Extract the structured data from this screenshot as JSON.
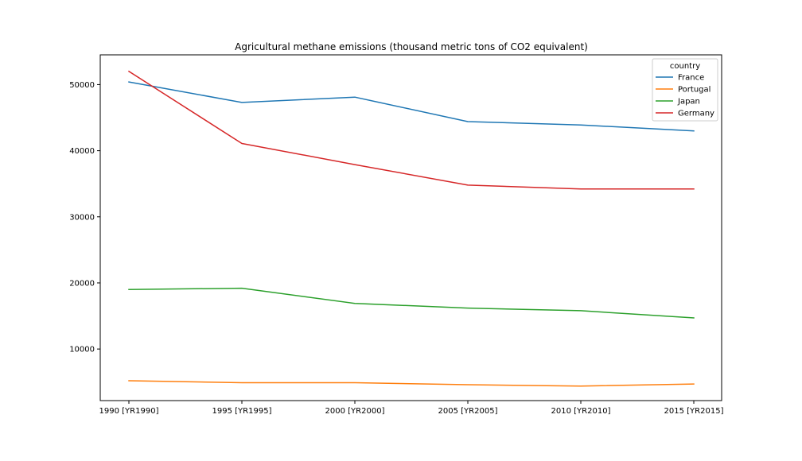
{
  "chart_data": {
    "type": "line",
    "title": "Agricultural methane emissions (thousand metric tons of CO2 equivalent)",
    "xlabel": "",
    "ylabel": "",
    "categories": [
      "1990 [YR1990]",
      "1995 [YR1995]",
      "2000 [YR2000]",
      "2005 [YR2005]",
      "2010 [YR2010]",
      "2015 [YR2015]"
    ],
    "y_ticks": [
      10000,
      20000,
      30000,
      40000,
      50000
    ],
    "ylim": [
      2200,
      54500
    ],
    "grid": false,
    "legend": {
      "title": "country",
      "position": "top-right"
    },
    "series": [
      {
        "name": "France",
        "color": "#1f77b4",
        "values": [
          50400,
          47300,
          48100,
          44400,
          43900,
          43000
        ]
      },
      {
        "name": "Portugal",
        "color": "#ff7f0e",
        "values": [
          5200,
          4900,
          4900,
          4600,
          4400,
          4700
        ]
      },
      {
        "name": "Japan",
        "color": "#2ca02c",
        "values": [
          19000,
          19200,
          16900,
          16200,
          15800,
          14700
        ]
      },
      {
        "name": "Germany",
        "color": "#d62728",
        "values": [
          52000,
          41100,
          37900,
          34800,
          34200,
          34200
        ]
      }
    ]
  }
}
